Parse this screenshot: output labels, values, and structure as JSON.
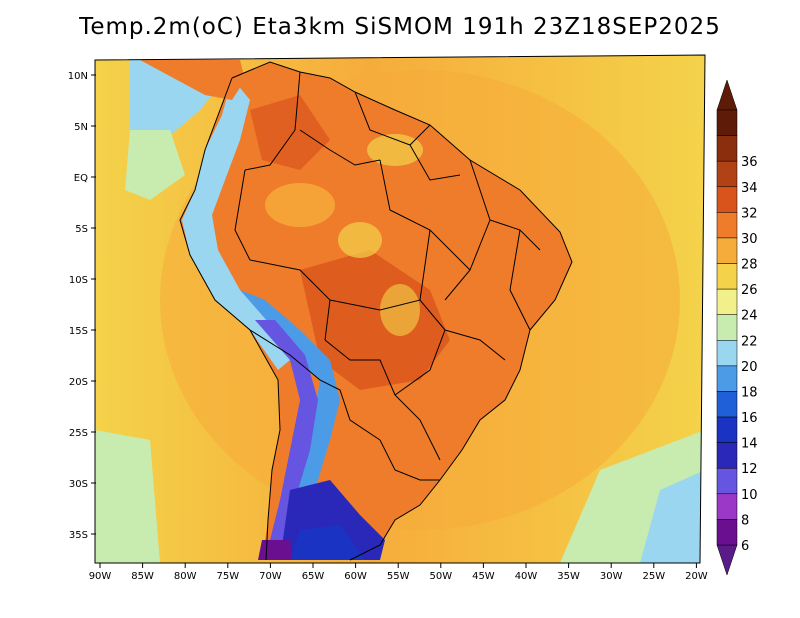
{
  "title": "Temp.2m(oC) Eta3km SiSMOM 191h 23Z18SEP2025",
  "map": {
    "lat_ticks": [
      "10N",
      "5N",
      "EQ",
      "5S",
      "10S",
      "15S",
      "20S",
      "25S",
      "30S",
      "35S"
    ],
    "lon_ticks": [
      "90W",
      "85W",
      "80W",
      "75W",
      "70W",
      "65W",
      "60W",
      "55W",
      "50W",
      "45W",
      "40W",
      "35W",
      "30W",
      "25W",
      "20W"
    ]
  },
  "colorbar": {
    "labels": [
      "6",
      "8",
      "10",
      "12",
      "14",
      "16",
      "18",
      "20",
      "22",
      "24",
      "26",
      "28",
      "30",
      "32",
      "34",
      "36"
    ],
    "colors": [
      "#6a0f8f",
      "#9b38c8",
      "#6655e0",
      "#2a28b8",
      "#1a33c2",
      "#1f5fd8",
      "#4b9be6",
      "#9ad6f0",
      "#c8ecb0",
      "#f2f08a",
      "#f4d34a",
      "#f6ac3b",
      "#ef7c2a",
      "#d9541c",
      "#b04216",
      "#8a2e0e",
      "#5e1c08"
    ],
    "top_color": "#5e1c08",
    "bottom_color": "#5a1a88"
  }
}
